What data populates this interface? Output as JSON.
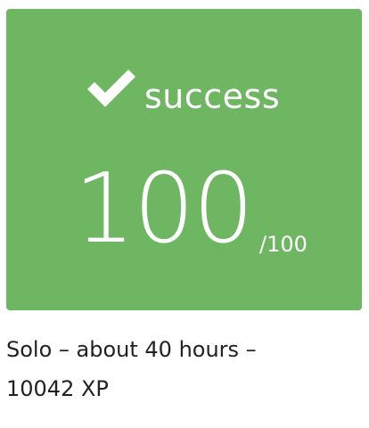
{
  "result_card": {
    "status_icon": "checkmark-icon",
    "status_label": "success",
    "score": "100",
    "score_max": "/100",
    "background_color": "#6fb662"
  },
  "details": {
    "line1": "Solo – about 40 hours –",
    "line2": "10042 XP"
  }
}
